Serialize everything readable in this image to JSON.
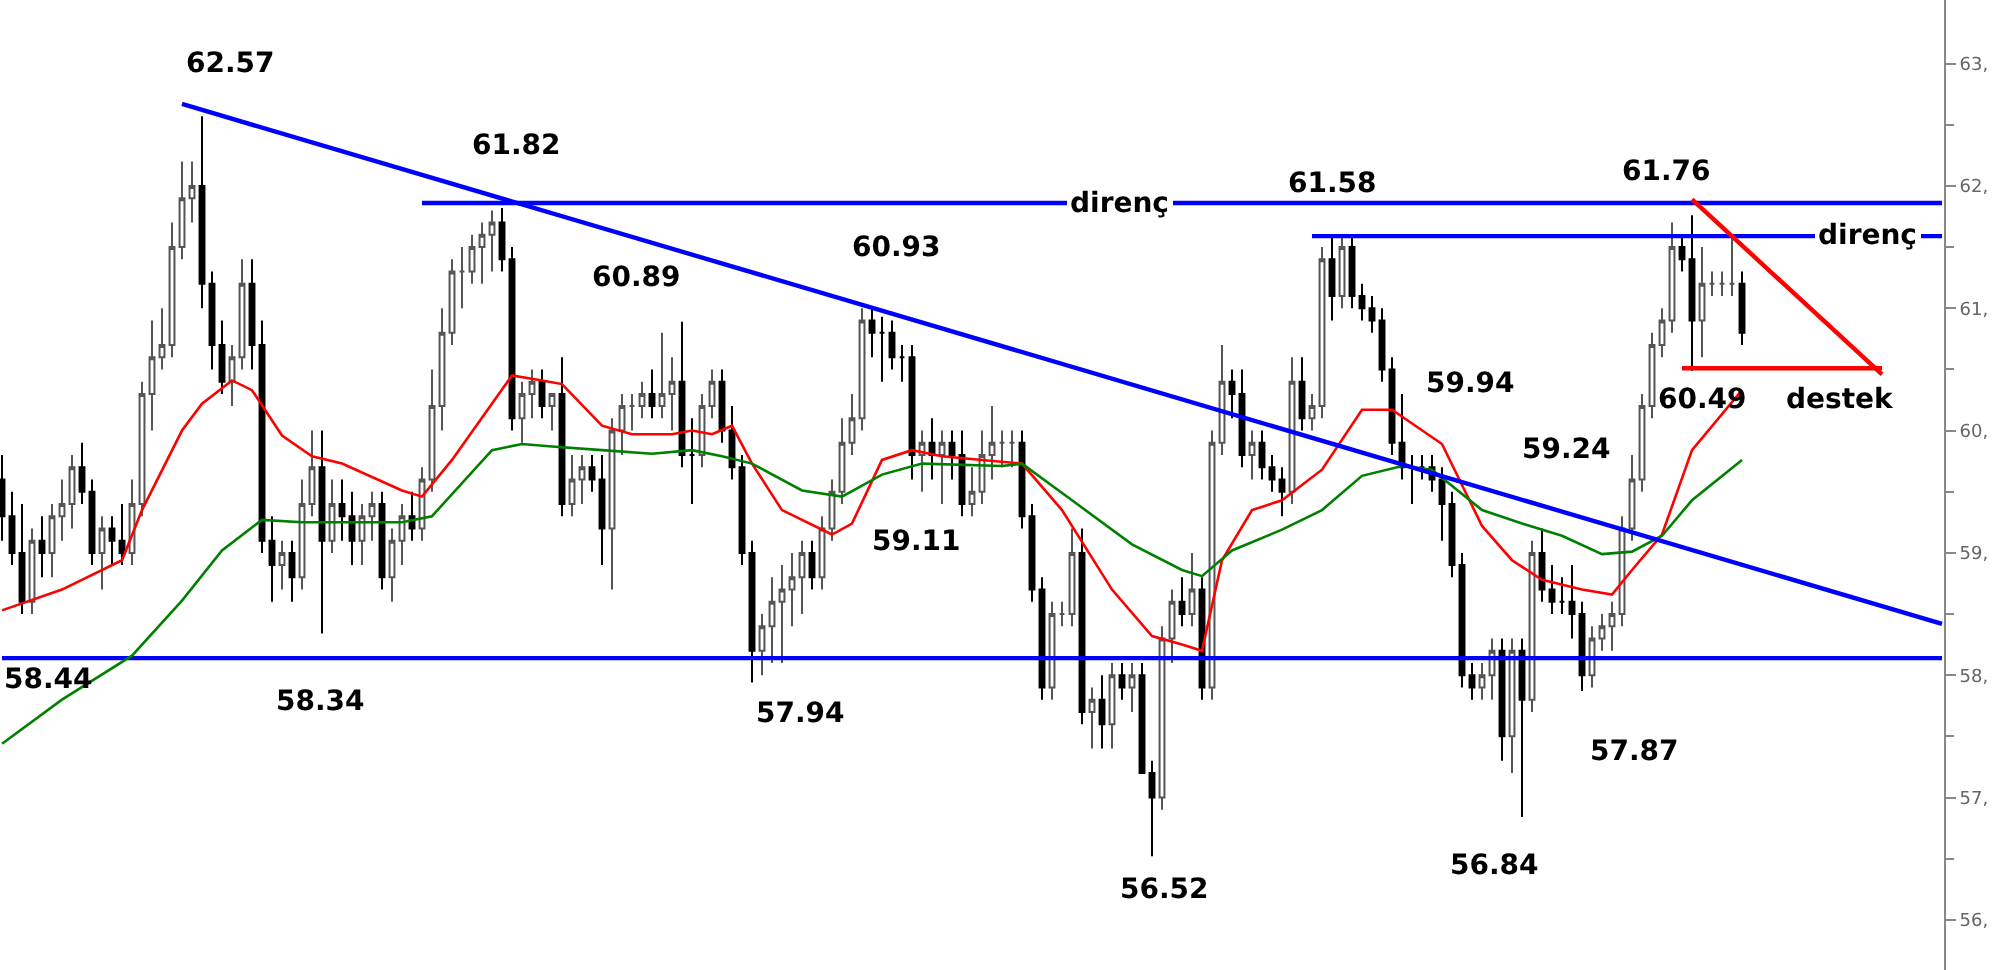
{
  "chart_data": {
    "type": "candlestick",
    "categories": [
      null,
      null,
      null,
      null,
      null,
      null,
      null,
      null,
      null,
      null,
      null,
      null,
      null,
      null,
      null,
      null,
      null,
      null,
      null,
      null,
      null,
      null,
      null,
      null,
      null,
      null,
      null,
      null,
      null,
      null,
      null,
      null,
      null,
      null,
      null,
      null,
      null,
      null,
      null,
      null,
      null,
      null,
      null,
      null,
      null,
      null,
      null,
      null,
      null,
      null,
      null,
      null,
      null,
      null,
      null,
      null,
      null,
      null,
      null,
      null,
      null,
      null,
      null,
      null,
      null,
      null,
      null,
      null,
      null,
      null,
      null,
      null,
      null,
      null,
      null,
      null,
      null,
      null,
      null,
      null,
      null,
      null,
      null,
      null,
      null,
      null,
      null,
      null,
      null,
      null,
      null,
      null,
      null,
      null,
      null,
      null,
      null,
      null,
      null,
      null,
      null,
      null,
      null,
      null,
      null,
      null,
      null,
      null,
      null,
      null,
      null,
      null,
      null,
      null,
      null,
      null,
      null,
      null,
      null,
      null,
      null,
      null,
      null,
      null,
      null,
      null,
      null,
      null,
      null,
      null,
      null,
      null,
      null,
      null,
      null,
      null,
      null,
      null,
      null,
      null,
      null,
      null,
      null,
      null,
      null,
      null,
      null,
      null,
      null,
      null,
      null,
      null,
      null,
      null,
      null,
      null,
      null,
      null,
      null,
      null,
      null,
      null,
      null,
      null,
      null,
      null,
      null,
      null,
      null,
      null,
      null,
      null,
      null,
      null,
      null,
      null,
      null,
      null,
      null,
      null,
      null,
      null,
      null,
      null,
      null,
      null,
      null,
      null,
      null,
      null,
      null,
      null,
      null,
      null,
      null
    ],
    "ohlc": [
      [
        59.6,
        59.8,
        59.1,
        59.3
      ],
      [
        59.3,
        59.5,
        58.9,
        59.0
      ],
      [
        59.0,
        59.4,
        58.5,
        58.6
      ],
      [
        58.6,
        59.2,
        58.5,
        59.1
      ],
      [
        59.1,
        59.3,
        58.8,
        59.0
      ],
      [
        59.0,
        59.4,
        58.8,
        59.3
      ],
      [
        59.3,
        59.6,
        59.1,
        59.4
      ],
      [
        59.4,
        59.8,
        59.2,
        59.7
      ],
      [
        59.7,
        59.9,
        59.4,
        59.5
      ],
      [
        59.5,
        59.6,
        58.9,
        59.0
      ],
      [
        59.0,
        59.3,
        58.7,
        59.2
      ],
      [
        59.2,
        59.3,
        58.9,
        59.1
      ],
      [
        59.1,
        59.4,
        58.9,
        59.0
      ],
      [
        59.0,
        59.6,
        58.9,
        59.4
      ],
      [
        59.4,
        60.4,
        59.3,
        60.3
      ],
      [
        60.3,
        60.9,
        60.0,
        60.6
      ],
      [
        60.6,
        61.0,
        60.5,
        60.7
      ],
      [
        60.7,
        61.7,
        60.6,
        61.5
      ],
      [
        61.5,
        62.2,
        61.4,
        61.9
      ],
      [
        61.9,
        62.2,
        61.7,
        62.0
      ],
      [
        62.0,
        62.57,
        61.0,
        61.2
      ],
      [
        61.2,
        61.3,
        60.5,
        60.7
      ],
      [
        60.7,
        60.9,
        60.3,
        60.4
      ],
      [
        60.4,
        60.7,
        60.2,
        60.6
      ],
      [
        60.6,
        61.4,
        60.5,
        61.2
      ],
      [
        61.2,
        61.4,
        60.5,
        60.7
      ],
      [
        60.7,
        60.9,
        59.0,
        59.1
      ],
      [
        59.1,
        59.3,
        58.6,
        58.9
      ],
      [
        58.9,
        59.1,
        58.7,
        59.0
      ],
      [
        59.0,
        59.1,
        58.6,
        58.8
      ],
      [
        58.8,
        59.6,
        58.7,
        59.4
      ],
      [
        59.4,
        60.0,
        59.3,
        59.7
      ],
      [
        59.7,
        60.0,
        58.34,
        59.1
      ],
      [
        59.1,
        59.6,
        59.0,
        59.4
      ],
      [
        59.4,
        59.6,
        59.1,
        59.3
      ],
      [
        59.3,
        59.5,
        58.9,
        59.1
      ],
      [
        59.1,
        59.4,
        58.9,
        59.3
      ],
      [
        59.3,
        59.5,
        59.1,
        59.4
      ],
      [
        59.4,
        59.5,
        58.7,
        58.8
      ],
      [
        58.8,
        59.2,
        58.6,
        59.1
      ],
      [
        59.1,
        59.4,
        58.9,
        59.3
      ],
      [
        59.3,
        59.5,
        59.1,
        59.2
      ],
      [
        59.2,
        59.7,
        59.1,
        59.6
      ],
      [
        59.6,
        60.5,
        59.5,
        60.2
      ],
      [
        60.2,
        61.0,
        60.0,
        60.8
      ],
      [
        60.8,
        61.4,
        60.7,
        61.3
      ],
      [
        61.3,
        61.5,
        61.0,
        61.3
      ],
      [
        61.3,
        61.6,
        61.2,
        61.5
      ],
      [
        61.5,
        61.7,
        61.2,
        61.6
      ],
      [
        61.6,
        61.8,
        61.3,
        61.7
      ],
      [
        61.7,
        61.82,
        61.3,
        61.4
      ],
      [
        61.4,
        61.5,
        60.0,
        60.1
      ],
      [
        60.1,
        60.4,
        59.9,
        60.3
      ],
      [
        60.3,
        60.5,
        60.1,
        60.4
      ],
      [
        60.4,
        60.5,
        60.1,
        60.2
      ],
      [
        60.2,
        60.3,
        60.0,
        60.3
      ],
      [
        60.3,
        60.6,
        59.3,
        59.4
      ],
      [
        59.4,
        59.8,
        59.3,
        59.6
      ],
      [
        59.6,
        59.8,
        59.4,
        59.7
      ],
      [
        59.7,
        59.8,
        59.5,
        59.6
      ],
      [
        59.6,
        59.8,
        58.9,
        59.2
      ],
      [
        59.2,
        60.1,
        58.7,
        60.0
      ],
      [
        60.0,
        60.3,
        59.8,
        60.2
      ],
      [
        60.2,
        60.3,
        60.0,
        60.2
      ],
      [
        60.2,
        60.4,
        60.1,
        60.3
      ],
      [
        60.3,
        60.5,
        60.1,
        60.2
      ],
      [
        60.2,
        60.8,
        60.1,
        60.3
      ],
      [
        60.3,
        60.6,
        60.0,
        60.4
      ],
      [
        60.4,
        60.89,
        59.7,
        59.8
      ],
      [
        59.8,
        60.1,
        59.4,
        59.8
      ],
      [
        59.8,
        60.3,
        59.7,
        60.2
      ],
      [
        60.2,
        60.5,
        60.1,
        60.4
      ],
      [
        60.4,
        60.5,
        59.9,
        60.0
      ],
      [
        60.0,
        60.2,
        59.6,
        59.7
      ],
      [
        59.7,
        59.8,
        58.9,
        59.0
      ],
      [
        59.0,
        59.1,
        57.94,
        58.2
      ],
      [
        58.2,
        58.5,
        58.0,
        58.4
      ],
      [
        58.4,
        58.8,
        58.1,
        58.6
      ],
      [
        58.6,
        58.9,
        58.1,
        58.7
      ],
      [
        58.7,
        59.0,
        58.4,
        58.8
      ],
      [
        58.8,
        59.1,
        58.5,
        59.0
      ],
      [
        59.0,
        59.1,
        58.7,
        58.8
      ],
      [
        58.8,
        59.3,
        58.7,
        59.2
      ],
      [
        59.2,
        59.6,
        59.1,
        59.5
      ],
      [
        59.5,
        60.1,
        59.4,
        59.9
      ],
      [
        59.9,
        60.3,
        59.8,
        60.1
      ],
      [
        60.1,
        61.0,
        60.0,
        60.9
      ],
      [
        60.9,
        61.0,
        60.6,
        60.8
      ],
      [
        60.8,
        60.93,
        60.4,
        60.8
      ],
      [
        60.8,
        60.9,
        60.5,
        60.6
      ],
      [
        60.6,
        60.7,
        60.4,
        60.6
      ],
      [
        60.6,
        60.7,
        59.6,
        59.8
      ],
      [
        59.8,
        60.0,
        59.5,
        59.9
      ],
      [
        59.9,
        60.1,
        59.6,
        59.8
      ],
      [
        59.8,
        60.0,
        59.4,
        59.9
      ],
      [
        59.9,
        60.0,
        59.6,
        59.8
      ],
      [
        59.8,
        60.0,
        59.3,
        59.4
      ],
      [
        59.4,
        59.7,
        59.3,
        59.5
      ],
      [
        59.5,
        60.0,
        59.4,
        59.8
      ],
      [
        59.8,
        60.2,
        59.6,
        59.9
      ],
      [
        59.9,
        60.0,
        59.7,
        59.9
      ],
      [
        59.9,
        60.0,
        59.7,
        59.9
      ],
      [
        59.9,
        60.0,
        59.2,
        59.3
      ],
      [
        59.3,
        59.4,
        58.6,
        58.7
      ],
      [
        58.7,
        58.8,
        57.8,
        57.9
      ],
      [
        57.9,
        58.6,
        57.8,
        58.5
      ],
      [
        58.5,
        58.6,
        58.4,
        58.5
      ],
      [
        58.5,
        59.2,
        58.4,
        59.0
      ],
      [
        59.0,
        59.2,
        57.6,
        57.7
      ],
      [
        57.7,
        57.9,
        57.4,
        57.8
      ],
      [
        57.8,
        58.0,
        57.4,
        57.6
      ],
      [
        57.6,
        58.1,
        57.4,
        58.0
      ],
      [
        58.0,
        58.1,
        57.8,
        57.9
      ],
      [
        57.9,
        58.1,
        57.7,
        58.0
      ],
      [
        58.0,
        58.1,
        57.2,
        57.2
      ],
      [
        57.2,
        57.3,
        56.52,
        57.0
      ],
      [
        57.0,
        58.4,
        56.9,
        58.3
      ],
      [
        58.3,
        58.7,
        58.1,
        58.6
      ],
      [
        58.6,
        58.8,
        58.4,
        58.5
      ],
      [
        58.5,
        59.0,
        58.4,
        58.7
      ],
      [
        58.7,
        58.8,
        57.8,
        57.9
      ],
      [
        57.9,
        60.0,
        57.8,
        59.9
      ],
      [
        59.9,
        60.7,
        59.8,
        60.4
      ],
      [
        60.4,
        60.5,
        60.1,
        60.3
      ],
      [
        60.3,
        60.5,
        59.7,
        59.8
      ],
      [
        59.8,
        60.0,
        59.6,
        59.9
      ],
      [
        59.9,
        60.0,
        59.6,
        59.7
      ],
      [
        59.7,
        59.8,
        59.5,
        59.6
      ],
      [
        59.6,
        59.7,
        59.3,
        59.5
      ],
      [
        59.5,
        60.6,
        59.4,
        60.4
      ],
      [
        60.4,
        60.6,
        60.0,
        60.1
      ],
      [
        60.1,
        60.3,
        60.0,
        60.2
      ],
      [
        60.2,
        61.5,
        60.1,
        61.4
      ],
      [
        61.4,
        61.58,
        60.9,
        61.1
      ],
      [
        61.1,
        61.6,
        61.0,
        61.5
      ],
      [
        61.5,
        61.6,
        61.0,
        61.1
      ],
      [
        61.1,
        61.2,
        60.9,
        61.0
      ],
      [
        61.0,
        61.1,
        60.8,
        60.9
      ],
      [
        60.9,
        61.0,
        60.4,
        60.5
      ],
      [
        60.5,
        60.6,
        59.8,
        59.9
      ],
      [
        59.9,
        60.3,
        59.6,
        59.7
      ],
      [
        59.7,
        59.8,
        59.4,
        59.7
      ],
      [
        59.7,
        59.8,
        59.6,
        59.7
      ],
      [
        59.7,
        59.8,
        59.5,
        59.6
      ],
      [
        59.6,
        59.7,
        59.1,
        59.4
      ],
      [
        59.4,
        59.5,
        58.8,
        58.9
      ],
      [
        58.9,
        59.0,
        57.9,
        58.0
      ],
      [
        58.0,
        58.1,
        57.8,
        57.9
      ],
      [
        57.9,
        58.1,
        57.8,
        58.0
      ],
      [
        58.0,
        58.3,
        57.8,
        58.2
      ],
      [
        58.2,
        58.3,
        57.3,
        57.5
      ],
      [
        57.5,
        58.3,
        57.2,
        58.2
      ],
      [
        58.2,
        58.3,
        56.84,
        57.8
      ],
      [
        57.8,
        59.1,
        57.7,
        59.0
      ],
      [
        59.0,
        59.2,
        58.6,
        58.7
      ],
      [
        58.7,
        58.9,
        58.5,
        58.6
      ],
      [
        58.6,
        58.8,
        58.5,
        58.6
      ],
      [
        58.6,
        58.9,
        58.3,
        58.5
      ],
      [
        58.5,
        58.6,
        57.87,
        58.0
      ],
      [
        58.0,
        58.4,
        57.9,
        58.3
      ],
      [
        58.3,
        58.5,
        58.2,
        58.4
      ],
      [
        58.4,
        58.6,
        58.2,
        58.5
      ],
      [
        58.5,
        59.3,
        58.4,
        59.2
      ],
      [
        59.2,
        59.8,
        59.1,
        59.6
      ],
      [
        59.6,
        60.3,
        59.5,
        60.2
      ],
      [
        60.2,
        60.8,
        60.1,
        60.7
      ],
      [
        60.7,
        61.0,
        60.6,
        60.9
      ],
      [
        60.9,
        61.7,
        60.8,
        61.5
      ],
      [
        61.5,
        61.6,
        61.3,
        61.4
      ],
      [
        61.4,
        61.76,
        60.49,
        60.9
      ],
      [
        60.9,
        61.5,
        60.6,
        61.2
      ],
      [
        61.2,
        61.3,
        61.1,
        61.2
      ],
      [
        61.2,
        61.3,
        61.1,
        61.2
      ],
      [
        61.2,
        61.6,
        61.1,
        61.2
      ],
      [
        61.2,
        61.3,
        60.7,
        60.8
      ],
      null,
      null,
      null,
      null,
      null,
      null,
      null,
      null,
      null,
      null,
      null,
      null,
      null,
      null,
      null,
      null,
      null,
      null,
      null,
      null
    ],
    "series": [
      {
        "type": "line",
        "color": "#ff0000",
        "values": [
          58.53,
          null,
          null,
          null,
          null,
          null,
          58.7,
          null,
          null,
          null,
          null,
          null,
          58.94,
          null,
          59.35,
          null,
          null,
          null,
          60.0,
          null,
          60.22,
          null,
          null,
          60.41,
          null,
          60.33,
          null,
          null,
          59.96,
          null,
          null,
          59.79,
          null,
          null,
          59.73,
          null,
          null,
          null,
          null,
          null,
          59.51,
          null,
          59.46,
          null,
          null,
          59.76,
          null,
          null,
          null,
          null,
          null,
          60.45,
          null,
          null,
          60.41,
          null,
          60.38,
          null,
          null,
          null,
          60.04,
          null,
          null,
          59.97,
          null,
          null,
          null,
          59.97,
          null,
          60.0,
          null,
          59.97,
          null,
          60.04,
          null,
          59.73,
          null,
          null,
          59.35,
          null,
          null,
          null,
          null,
          59.15,
          null,
          59.24,
          null,
          null,
          59.76,
          null,
          null,
          59.84,
          null,
          null,
          59.79,
          null,
          null,
          null,
          59.76,
          null,
          null,
          null,
          59.73,
          null,
          null,
          null,
          59.35,
          null,
          null,
          null,
          null,
          58.7,
          null,
          null,
          null,
          58.32,
          null,
          null,
          58.25,
          null,
          58.2,
          null,
          58.94,
          null,
          null,
          59.35,
          null,
          null,
          59.43,
          null,
          null,
          null,
          59.68,
          null,
          null,
          null,
          60.17,
          null,
          null,
          60.17,
          null,
          null,
          null,
          null,
          59.89,
          null,
          null,
          null,
          59.22,
          null,
          null,
          58.94,
          null,
          null,
          58.78,
          null,
          null,
          null,
          58.7,
          null,
          null,
          58.66,
          null,
          58.86,
          null,
          null,
          59.15,
          null,
          null,
          59.84,
          null,
          null,
          null,
          null,
          60.33,
          null,
          null,
          null,
          null,
          null,
          null,
          null,
          null,
          null,
          null,
          null,
          null,
          null,
          null,
          null,
          null,
          null,
          null,
          null,
          null
        ]
      },
      {
        "type": "line",
        "color": "#008000",
        "values": [
          57.44,
          null,
          null,
          null,
          null,
          null,
          57.8,
          null,
          null,
          null,
          null,
          null,
          null,
          58.16,
          null,
          null,
          null,
          null,
          58.61,
          null,
          null,
          null,
          59.02,
          null,
          null,
          null,
          59.27,
          null,
          null,
          null,
          59.25,
          null,
          null,
          null,
          59.25,
          null,
          null,
          null,
          null,
          null,
          59.25,
          null,
          null,
          59.3,
          null,
          null,
          null,
          null,
          null,
          59.84,
          null,
          null,
          59.89,
          null,
          null,
          59.87,
          null,
          null,
          null,
          null,
          59.84,
          null,
          null,
          null,
          null,
          59.81,
          null,
          null,
          null,
          59.84,
          null,
          null,
          59.79,
          null,
          null,
          59.73,
          null,
          null,
          null,
          null,
          59.51,
          null,
          null,
          null,
          59.46,
          null,
          null,
          null,
          59.64,
          null,
          null,
          null,
          59.73,
          null,
          null,
          null,
          null,
          null,
          null,
          null,
          59.71,
          null,
          59.73,
          null,
          null,
          null,
          null,
          59.43,
          null,
          null,
          null,
          null,
          null,
          59.07,
          null,
          null,
          null,
          null,
          58.86,
          null,
          58.81,
          null,
          null,
          59.02,
          null,
          null,
          null,
          null,
          59.19,
          null,
          null,
          null,
          59.35,
          null,
          null,
          null,
          59.63,
          null,
          null,
          null,
          59.71,
          null,
          null,
          59.68,
          null,
          null,
          null,
          null,
          59.35,
          null,
          null,
          null,
          59.24,
          null,
          null,
          null,
          59.14,
          null,
          null,
          null,
          58.99,
          null,
          null,
          59.01,
          null,
          null,
          59.14,
          null,
          null,
          59.43,
          null,
          null,
          null,
          null,
          59.76,
          null,
          null,
          null,
          null,
          null,
          null,
          null,
          null,
          null,
          null,
          null,
          null,
          null,
          null,
          null,
          null,
          null,
          null,
          null,
          null
        ]
      },
      {
        "type": "line",
        "color": "#0000ff",
        "values": [
          null,
          null,
          null,
          null,
          null,
          null,
          null,
          null,
          null,
          null,
          null,
          null,
          null,
          null,
          null,
          null,
          null,
          null,
          62.67,
          null,
          null,
          null,
          null,
          null,
          null,
          null,
          null,
          null,
          null,
          null,
          null,
          null,
          null,
          null,
          null,
          null,
          null,
          null,
          null,
          null,
          null,
          null,
          null,
          null,
          null,
          null,
          null,
          null,
          null,
          null,
          null,
          null,
          null,
          null,
          null,
          null,
          null,
          null,
          null,
          null,
          null,
          null,
          null,
          null,
          null,
          null,
          null,
          null,
          null,
          null,
          null,
          null,
          null,
          null,
          null,
          null,
          null,
          null,
          null,
          null,
          null,
          null,
          null,
          null,
          null,
          null,
          null,
          null,
          null,
          null,
          null,
          null,
          null,
          null,
          null,
          null,
          null,
          null,
          null,
          null,
          null,
          null,
          null,
          null,
          null,
          null,
          null,
          null,
          null,
          null,
          null,
          null,
          null,
          null,
          null,
          null,
          null,
          null,
          null,
          null,
          null,
          null,
          null,
          null,
          null,
          null,
          null,
          null,
          null,
          null,
          null,
          null,
          null,
          null,
          null,
          null,
          null,
          null,
          null,
          null,
          null,
          null,
          null,
          null,
          null,
          null,
          null,
          null,
          null,
          null,
          null,
          null,
          null,
          null,
          null,
          null,
          null,
          null,
          null,
          null,
          null,
          null,
          null,
          null,
          null,
          null,
          null,
          null,
          null,
          null,
          null,
          null,
          null,
          null,
          null,
          null,
          null,
          null,
          null,
          null,
          null,
          null,
          null,
          null,
          null,
          null,
          null,
          null,
          null,
          null,
          null,
          null,
          null,
          null,
          58.42
        ]
      },
      {
        "type": "line",
        "color": "#0000ff",
        "values": [
          null,
          null,
          null,
          null,
          null,
          null,
          null,
          null,
          null,
          null,
          null,
          null,
          null,
          null,
          null,
          null,
          null,
          null,
          null,
          null,
          null,
          null,
          null,
          null,
          null,
          null,
          null,
          null,
          null,
          null,
          null,
          null,
          null,
          null,
          null,
          null,
          null,
          null,
          null,
          null,
          null,
          null,
          61.86,
          null,
          null,
          null,
          null,
          null,
          null,
          null,
          null,
          null,
          null,
          null,
          null,
          null,
          null,
          null,
          null,
          null,
          null,
          null,
          null,
          null,
          null,
          null,
          null,
          null,
          null,
          null,
          null,
          null,
          null,
          null,
          null,
          null,
          null,
          null,
          null,
          null,
          null,
          null,
          null,
          null,
          null,
          null,
          null,
          null,
          null,
          null,
          null,
          null,
          null,
          null,
          null,
          null,
          null,
          null,
          null,
          null,
          null,
          null,
          null,
          null,
          null,
          null,
          null,
          null,
          null,
          null,
          null,
          null,
          null,
          null,
          null,
          null,
          null,
          null,
          null,
          null,
          null,
          null,
          null,
          null,
          null,
          null,
          null,
          null,
          null,
          null,
          null,
          null,
          null,
          null,
          null,
          null,
          null,
          null,
          null,
          null,
          null,
          null,
          null,
          null,
          null,
          null,
          null,
          null,
          null,
          null,
          null,
          null,
          null,
          null,
          null,
          null,
          null,
          null,
          null,
          null,
          null,
          null,
          null,
          null,
          null,
          null,
          null,
          null,
          null,
          null,
          null,
          null,
          null,
          null,
          null,
          null,
          null,
          null,
          null,
          null,
          null,
          null,
          null,
          null,
          null,
          null,
          null,
          null,
          null,
          null,
          null,
          null,
          null,
          null,
          61.86
        ]
      },
      {
        "type": "line",
        "color": "#0000ff",
        "values": [
          null,
          null,
          null,
          null,
          null,
          null,
          null,
          null,
          null,
          null,
          null,
          null,
          null,
          null,
          null,
          null,
          null,
          null,
          null,
          null,
          null,
          null,
          null,
          null,
          null,
          null,
          null,
          null,
          null,
          null,
          null,
          null,
          null,
          null,
          null,
          null,
          null,
          null,
          null,
          null,
          null,
          null,
          null,
          null,
          null,
          null,
          null,
          null,
          null,
          null,
          null,
          null,
          null,
          null,
          null,
          null,
          null,
          null,
          null,
          null,
          null,
          null,
          null,
          null,
          null,
          null,
          null,
          null,
          null,
          null,
          null,
          null,
          null,
          null,
          null,
          null,
          null,
          null,
          null,
          null,
          null,
          null,
          null,
          null,
          null,
          null,
          null,
          null,
          null,
          null,
          null,
          null,
          null,
          null,
          null,
          null,
          null,
          null,
          null,
          null,
          null,
          null,
          null,
          null,
          null,
          null,
          null,
          null,
          null,
          null,
          null,
          null,
          null,
          null,
          null,
          null,
          null,
          null,
          null,
          null,
          null,
          null,
          null,
          null,
          null,
          null,
          null,
          null,
          null,
          null,
          null,
          61.59,
          null,
          null,
          null,
          null,
          null,
          null,
          null,
          null,
          null,
          null,
          null,
          null,
          null,
          null,
          null,
          null,
          null,
          null,
          null,
          null,
          null,
          null,
          null,
          null,
          null,
          null,
          null,
          null,
          null,
          null,
          null,
          null,
          null,
          null,
          null,
          null,
          null,
          null,
          null,
          null,
          null,
          null,
          null,
          null,
          null,
          null,
          null,
          null,
          null,
          null,
          null,
          null,
          null,
          null,
          null,
          null,
          null,
          null,
          null,
          null,
          null,
          null,
          61.59
        ]
      },
      {
        "type": "line",
        "color": "#ff0000",
        "values": [
          null,
          null,
          null,
          null,
          null,
          null,
          null,
          null,
          null,
          null,
          null,
          null,
          null,
          null,
          null,
          null,
          null,
          null,
          null,
          null,
          null,
          null,
          null,
          null,
          null,
          null,
          null,
          null,
          null,
          null,
          null,
          null,
          null,
          null,
          null,
          null,
          null,
          null,
          null,
          null,
          null,
          null,
          null,
          null,
          null,
          null,
          null,
          null,
          null,
          null,
          null,
          null,
          null,
          null,
          null,
          null,
          null,
          null,
          null,
          null,
          null,
          null,
          null,
          null,
          null,
          null,
          null,
          null,
          null,
          null,
          null,
          null,
          null,
          null,
          null,
          null,
          null,
          null,
          null,
          null,
          null,
          null,
          null,
          null,
          null,
          null,
          null,
          null,
          null,
          null,
          null,
          null,
          null,
          null,
          null,
          null,
          null,
          null,
          null,
          null,
          null,
          null,
          null,
          null,
          null,
          null,
          null,
          null,
          null,
          null,
          null,
          null,
          null,
          null,
          null,
          null,
          null,
          null,
          null,
          null,
          null,
          null,
          null,
          null,
          null,
          null,
          null,
          null,
          null,
          null,
          null,
          null,
          null,
          null,
          null,
          null,
          null,
          null,
          null,
          null,
          null,
          null,
          null,
          null,
          null,
          null,
          null,
          null,
          null,
          null,
          null,
          null,
          null,
          null,
          null,
          null,
          null,
          null,
          null,
          null,
          null,
          null,
          null,
          null,
          null,
          null,
          null,
          null,
          60.51,
          null,
          null,
          null,
          null,
          null,
          null,
          null,
          null,
          null,
          null,
          null,
          null,
          null,
          null,
          null,
          null,
          null,
          null,
          null,
          60.51,
          null,
          null,
          null,
          null,
          null,
          null
        ]
      },
      {
        "type": "line",
        "color": "#ff0000",
        "values": [
          null,
          null,
          null,
          null,
          null,
          null,
          null,
          null,
          null,
          null,
          null,
          null,
          null,
          null,
          null,
          null,
          null,
          null,
          null,
          null,
          null,
          null,
          null,
          null,
          null,
          null,
          null,
          null,
          null,
          null,
          null,
          null,
          null,
          null,
          null,
          null,
          null,
          null,
          null,
          null,
          null,
          null,
          null,
          null,
          null,
          null,
          null,
          null,
          null,
          null,
          null,
          null,
          null,
          null,
          null,
          null,
          null,
          null,
          null,
          null,
          null,
          null,
          null,
          null,
          null,
          null,
          null,
          null,
          null,
          null,
          null,
          null,
          null,
          null,
          null,
          null,
          null,
          null,
          null,
          null,
          null,
          null,
          null,
          null,
          null,
          null,
          null,
          null,
          null,
          null,
          null,
          null,
          null,
          null,
          null,
          null,
          null,
          null,
          null,
          null,
          null,
          null,
          null,
          null,
          null,
          null,
          null,
          null,
          null,
          null,
          null,
          null,
          null,
          null,
          null,
          null,
          null,
          null,
          null,
          null,
          null,
          null,
          null,
          null,
          null,
          null,
          null,
          null,
          null,
          null,
          null,
          null,
          null,
          null,
          null,
          null,
          null,
          null,
          null,
          null,
          null,
          null,
          null,
          null,
          null,
          null,
          null,
          null,
          null,
          null,
          null,
          null,
          null,
          null,
          null,
          null,
          null,
          null,
          null,
          null,
          null,
          null,
          null,
          null,
          null,
          null,
          null,
          null,
          null,
          61.89,
          null,
          null,
          null,
          null,
          null,
          null,
          null,
          null,
          null,
          null,
          null,
          null,
          null,
          null,
          null,
          null,
          null,
          null,
          60.46,
          null,
          null,
          null,
          null,
          null,
          null
        ]
      }
    ],
    "ref_lines": [
      {
        "axis": "y",
        "value": 58.14,
        "color": "#0000ff"
      }
    ],
    "annotations": [
      "62.57",
      "61.82",
      "60.89",
      "60.93",
      "direnç",
      "61.58",
      "61.76",
      "direnç",
      "59.94",
      "59.24",
      "60.49",
      "destek",
      "58.44",
      "58.34",
      "57.94",
      "59.11",
      "56.52",
      "56.84",
      "57.87"
    ],
    "ylim": [
      55.59,
      63.52
    ],
    "yticks": [
      {
        "value": 56,
        "label": "56,"
      },
      {
        "value": 56.5,
        "label": null
      },
      {
        "value": 57,
        "label": "57,"
      },
      {
        "value": 57.5,
        "label": null
      },
      {
        "value": 58,
        "label": "58,"
      },
      {
        "value": 58.5,
        "label": null
      },
      {
        "value": 59,
        "label": "59,"
      },
      {
        "value": 59.5,
        "label": null
      },
      {
        "value": 60,
        "label": "60,"
      },
      {
        "value": 60.5,
        "label": null
      },
      {
        "value": 61,
        "label": "61,"
      },
      {
        "value": 61.5,
        "label": null
      },
      {
        "value": 62,
        "label": "62,"
      },
      {
        "value": 62.5,
        "label": null
      },
      {
        "value": 63,
        "label": "63,"
      }
    ],
    "tick_labels": "y",
    "grid": false
  }
}
